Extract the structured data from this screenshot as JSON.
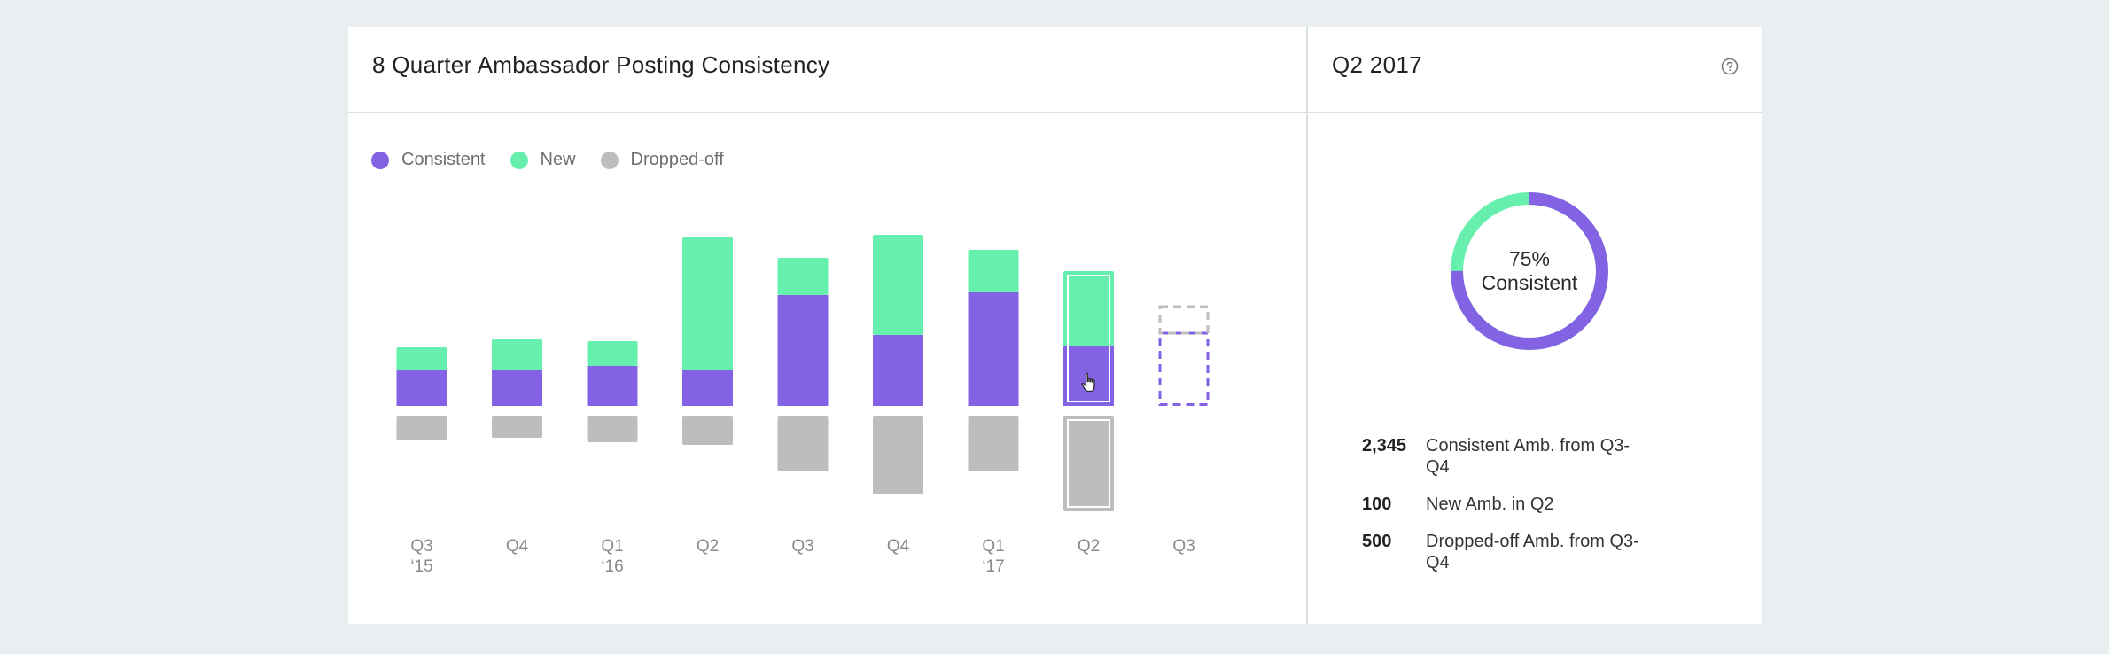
{
  "left_panel": {
    "title": "8 Quarter Ambassador Posting Consistency"
  },
  "right_panel": {
    "title": "Q2 2017",
    "help_icon": "question-circle-icon",
    "donut": {
      "consistent_fraction": 0.75,
      "percent_label": "75%",
      "label": "Consistent"
    },
    "stats": [
      {
        "value": "2,345",
        "label": "Consistent Amb. from Q3-Q4"
      },
      {
        "value": "100",
        "label": "New Amb. in Q2"
      },
      {
        "value": "500",
        "label": "Dropped-off Amb. from Q3-Q4"
      }
    ]
  },
  "colors": {
    "consistent": "#8462e4",
    "new": "#67f0ad",
    "dropped": "#bdbdbd",
    "forecast_dropped_outline": "#bdbdbd",
    "forecast_consistent_outline": "#8462e4"
  },
  "chart_data": {
    "type": "bar",
    "stacked": true,
    "legend": [
      "Consistent",
      "New",
      "Dropped-off"
    ],
    "legend_position": "top-left",
    "grid": false,
    "categories": [
      {
        "line1": "Q3",
        "line2": "‘15"
      },
      {
        "line1": "Q4",
        "line2": ""
      },
      {
        "line1": "Q1",
        "line2": "‘16"
      },
      {
        "line1": "Q2",
        "line2": ""
      },
      {
        "line1": "Q3",
        "line2": ""
      },
      {
        "line1": "Q4",
        "line2": ""
      },
      {
        "line1": "Q1",
        "line2": "‘17"
      },
      {
        "line1": "Q2",
        "line2": ""
      },
      {
        "line1": "Q3",
        "line2": ""
      }
    ],
    "series": [
      {
        "name": "Consistent",
        "values": [
          40,
          40,
          45,
          40,
          125,
          80,
          128,
          67,
          82
        ]
      },
      {
        "name": "New",
        "values": [
          26,
          36,
          28,
          150,
          42,
          113,
          48,
          85,
          30
        ]
      },
      {
        "name": "Dropped-off",
        "values": [
          28,
          25,
          30,
          33,
          63,
          89,
          63,
          108,
          null
        ]
      }
    ],
    "highlighted_index": 7,
    "forecast_index": 8,
    "y_units": "relative"
  }
}
